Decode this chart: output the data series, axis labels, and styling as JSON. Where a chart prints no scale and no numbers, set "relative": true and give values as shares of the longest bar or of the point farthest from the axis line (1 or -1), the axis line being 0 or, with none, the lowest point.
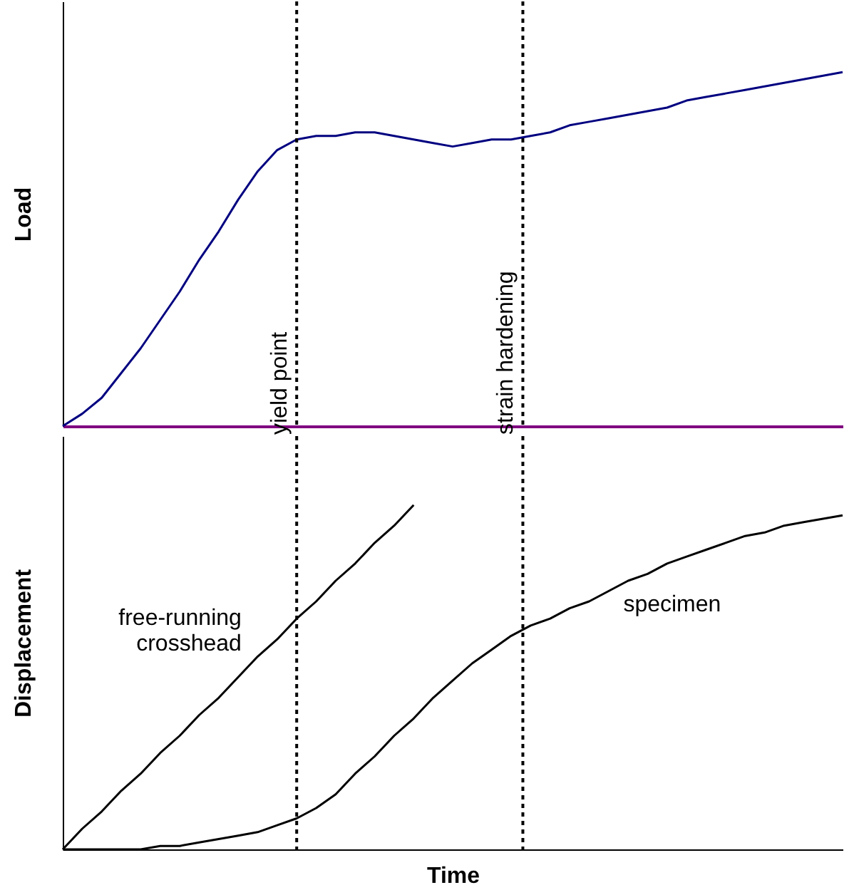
{
  "chart_data": [
    {
      "type": "line",
      "ylabel": "Load",
      "relative": true,
      "tick_labels": false,
      "categories": [
        null,
        null,
        null,
        null,
        null,
        null,
        null,
        null,
        null,
        null,
        null,
        null,
        null,
        null,
        null,
        null,
        null,
        null,
        null,
        null,
        null,
        null,
        null,
        null,
        null,
        null,
        null,
        null,
        null,
        null,
        null,
        null,
        null,
        null,
        null,
        null,
        null,
        null,
        null,
        null,
        null
      ],
      "annotations": [
        "yield point",
        "strain hardening"
      ],
      "series": [
        {
          "color": "#000080",
          "values": [
            0,
            0.035,
            0.08,
            0.15,
            0.22,
            0.3,
            0.38,
            0.47,
            0.55,
            0.64,
            0.72,
            0.78,
            0.81,
            0.82,
            0.82,
            0.83,
            0.83,
            0.82,
            0.81,
            0.8,
            0.79,
            0.8,
            0.81,
            0.81,
            0.82,
            0.83,
            0.85,
            0.86,
            0.87,
            0.88,
            0.89,
            0.9,
            0.92,
            0.93,
            0.94,
            0.95,
            0.96,
            0.97,
            0.98,
            0.99,
            1
          ]
        }
      ]
    },
    {
      "type": "line",
      "ylabel": "Displacement",
      "xlabel": "Time",
      "relative": true,
      "tick_labels": false,
      "categories": [
        null,
        null,
        null,
        null,
        null,
        null,
        null,
        null,
        null,
        null,
        null,
        null,
        null,
        null,
        null,
        null,
        null,
        null,
        null,
        null,
        null,
        null,
        null,
        null,
        null,
        null,
        null,
        null,
        null,
        null,
        null,
        null,
        null,
        null,
        null,
        null,
        null,
        null,
        null,
        null,
        null
      ],
      "series": [
        {
          "name": "free-running crosshead",
          "color": "#000000",
          "values": [
            0,
            0.06,
            0.11,
            0.17,
            0.22,
            0.28,
            0.33,
            0.39,
            0.44,
            0.5,
            0.56,
            0.61,
            0.67,
            0.72,
            0.78,
            0.83,
            0.89,
            0.94,
            1,
            null,
            null,
            null,
            null,
            null,
            null,
            null,
            null,
            null,
            null,
            null,
            null,
            null,
            null,
            null,
            null,
            null,
            null,
            null,
            null,
            null,
            null
          ]
        },
        {
          "name": "specimen",
          "color": "#000000",
          "values": [
            0,
            0,
            0,
            0,
            0,
            0.01,
            0.01,
            0.02,
            0.03,
            0.04,
            0.05,
            0.07,
            0.09,
            0.12,
            0.16,
            0.22,
            0.27,
            0.33,
            0.38,
            0.44,
            0.49,
            0.54,
            0.58,
            0.62,
            0.65,
            0.67,
            0.7,
            0.72,
            0.75,
            0.78,
            0.8,
            0.83,
            0.85,
            0.87,
            0.89,
            0.91,
            0.92,
            0.94,
            0.95,
            0.96,
            0.97
          ]
        }
      ]
    }
  ]
}
